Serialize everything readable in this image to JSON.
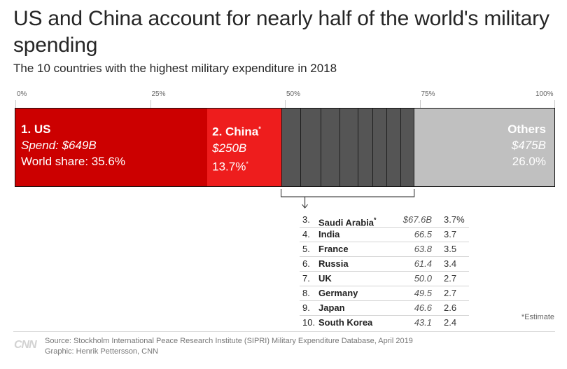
{
  "chart_data": {
    "type": "bar",
    "subtype": "stacked-100-percent",
    "title": "US and China account for nearly half of the world's military spending",
    "subtitle": "The 10 countries with the highest military expenditure in 2018",
    "axis": {
      "range": [
        0,
        100
      ],
      "ticks": [
        "0%",
        "25%",
        "50%",
        "75%",
        "100%"
      ],
      "tick_values": [
        0,
        25,
        50,
        75,
        100
      ]
    },
    "segments": [
      {
        "key": "us",
        "label": "1. US",
        "label_sup": "",
        "spend_text": "Spend: $649B",
        "share_text": "World share: 35.6%",
        "share_sup": "",
        "value": 35.6,
        "color": "#cc0000"
      },
      {
        "key": "china",
        "label": "2. China",
        "label_sup": "*",
        "spend_text": "$250B",
        "share_text": "13.7%",
        "share_sup": "*",
        "value": 13.7,
        "color": "#ee1d1d"
      }
    ],
    "middle_segments": [
      {
        "country": "Saudi Arabia",
        "value": 3.7
      },
      {
        "country": "India",
        "value": 3.7
      },
      {
        "country": "France",
        "value": 3.5
      },
      {
        "country": "Russia",
        "value": 3.4
      },
      {
        "country": "UK",
        "value": 2.7
      },
      {
        "country": "Germany",
        "value": 2.7
      },
      {
        "country": "Japan",
        "value": 2.6
      },
      {
        "country": "South Korea",
        "value": 2.4
      }
    ],
    "middle_color": "#555555",
    "others": {
      "label": "Others",
      "spend_text": "$475B",
      "share_text": "26.0%",
      "value": 26.0,
      "color": "#c0c0c0"
    },
    "table": [
      {
        "rank": "3.",
        "country": "Saudi Arabia",
        "sup": "*",
        "spend": "$67.6B",
        "share": "3.7%"
      },
      {
        "rank": "4.",
        "country": "India",
        "sup": "",
        "spend": "66.5",
        "share": "3.7"
      },
      {
        "rank": "5.",
        "country": "France",
        "sup": "",
        "spend": "63.8",
        "share": "3.5"
      },
      {
        "rank": "6.",
        "country": "Russia",
        "sup": "",
        "spend": "61.4",
        "share": "3.4"
      },
      {
        "rank": "7.",
        "country": "UK",
        "sup": "",
        "spend": "50.0",
        "share": "2.7"
      },
      {
        "rank": "8.",
        "country": "Germany",
        "sup": "",
        "spend": "49.5",
        "share": "2.7"
      },
      {
        "rank": "9.",
        "country": "Japan",
        "sup": "",
        "spend": "46.6",
        "share": "2.6"
      },
      {
        "rank": "10.",
        "country": "South Korea",
        "sup": "",
        "spend": "43.1",
        "share": "2.4"
      }
    ]
  },
  "note": "*Estimate",
  "footer": {
    "logo": "CNN",
    "source": "Source: Stockholm International Peace Research Institute (SIPRI) Military Expenditure Database, April 2019",
    "credit": "Graphic: Henrik Pettersson, CNN"
  }
}
